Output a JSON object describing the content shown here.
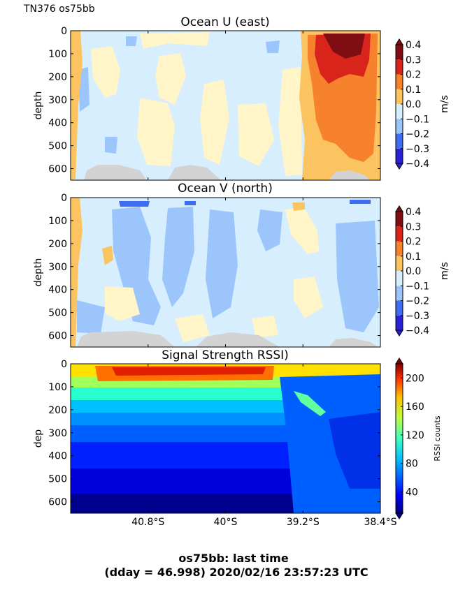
{
  "figure": {
    "corner_label": "TN376 os75bb",
    "footer_line1": "os75bb: last time",
    "footer_line2": "(dday = 46.998) 2020/02/16 23:57:23 UTC"
  },
  "chart_data": [
    {
      "type": "heatmap",
      "title": "Ocean U (east)",
      "ylabel": "depth",
      "y_inverted": true,
      "ylim": [
        0,
        650
      ],
      "y_ticks": [
        "0",
        "100",
        "200",
        "300",
        "400",
        "500",
        "600"
      ],
      "x_ticks": [],
      "colorbar": {
        "label": "m/s",
        "ticks": [
          "0.4",
          "0.3",
          "0.2",
          "0.1",
          "0.0",
          "−0.1",
          "−0.2",
          "−0.3",
          "−0.4"
        ],
        "levels": [
          -0.4,
          -0.3,
          -0.2,
          -0.1,
          0.0,
          0.1,
          0.2,
          0.3,
          0.4
        ],
        "colors": [
          "#2a20d6",
          "#3f6df0",
          "#9cc6fb",
          "#d6eefd",
          "#fff5c9",
          "#fbc460",
          "#f7822e",
          "#d9241c",
          "#7f0d12"
        ]
      },
      "description_values": {
        "west_edge": 0.1,
        "interior": 0.0,
        "east_jet_core": 0.4,
        "east_jet_deep": 0.2
      }
    },
    {
      "type": "heatmap",
      "title": "Ocean V (north)",
      "ylabel": "depth",
      "y_inverted": true,
      "ylim": [
        0,
        650
      ],
      "y_ticks": [
        "0",
        "100",
        "200",
        "300",
        "400",
        "500",
        "600"
      ],
      "x_ticks": [],
      "colorbar": {
        "label": "m/s",
        "ticks": [
          "0.4",
          "0.3",
          "0.2",
          "0.1",
          "0.0",
          "−0.1",
          "−0.2",
          "−0.3",
          "−0.4"
        ],
        "levels": [
          -0.4,
          -0.3,
          -0.2,
          -0.1,
          0.0,
          0.1,
          0.2,
          0.3,
          0.4
        ],
        "colors": [
          "#2a20d6",
          "#3f6df0",
          "#9cc6fb",
          "#d6eefd",
          "#fff5c9",
          "#fbc460",
          "#f7822e",
          "#d9241c",
          "#7f0d12"
        ]
      }
    },
    {
      "type": "heatmap",
      "title": "Signal Strength RSSI)",
      "ylabel": "dep",
      "y_inverted": true,
      "ylim": [
        0,
        650
      ],
      "y_ticks": [
        "0",
        "100",
        "200",
        "300",
        "400",
        "500",
        "600"
      ],
      "x_ticks": [
        "40.8°S",
        "40°S",
        "39.2°S",
        "38.4°S"
      ],
      "x_tick_values": [
        -40.8,
        -40.0,
        -39.2,
        -38.4
      ],
      "xlim": [
        -41.6,
        -38.4
      ],
      "colorbar": {
        "label": "RSSI counts",
        "ticks": [
          "200",
          "160",
          "120",
          "80",
          "40"
        ],
        "tick_values": [
          200,
          160,
          120,
          80,
          40
        ],
        "range": [
          10,
          220
        ]
      }
    }
  ]
}
